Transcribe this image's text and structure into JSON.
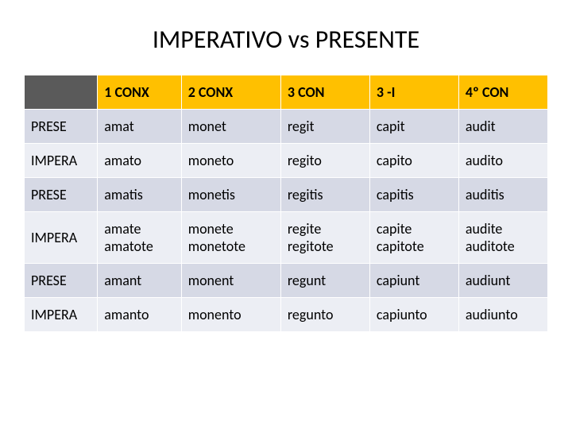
{
  "title": "IMPERATIVO vs PRESENTE",
  "table": {
    "header_bg": "#ffc000",
    "header_blank_bg": "#5a5a5a",
    "row_odd_bg": "#d6d9e5",
    "row_even_bg": "#eceef4",
    "border_color": "#ffffff",
    "columns": [
      "",
      "1 CONX",
      "2 CONX",
      "3 CON",
      "3 -I",
      "4º CON"
    ],
    "rows": [
      {
        "label": "PRESE",
        "cells": [
          "amat",
          "monet",
          "regit",
          "capit",
          "audit"
        ]
      },
      {
        "label": "IMPERA",
        "cells": [
          "amato",
          "moneto",
          "regito",
          "capito",
          "audito"
        ]
      },
      {
        "label": "PRESE",
        "cells": [
          "amatis",
          "monetis",
          "regitis",
          "capitis",
          "auditis"
        ]
      },
      {
        "label": "IMPERA",
        "cells": [
          "amate amatote",
          "monete monetote",
          "regite regitote",
          "capite capitote",
          "audite auditote"
        ]
      },
      {
        "label": "PRESE",
        "cells": [
          "amant",
          "monent",
          "regunt",
          "capiunt",
          "audiunt"
        ]
      },
      {
        "label": "IMPERA",
        "cells": [
          "amanto",
          "monento",
          "regunto",
          "capiunto",
          "audiunto"
        ]
      }
    ]
  }
}
